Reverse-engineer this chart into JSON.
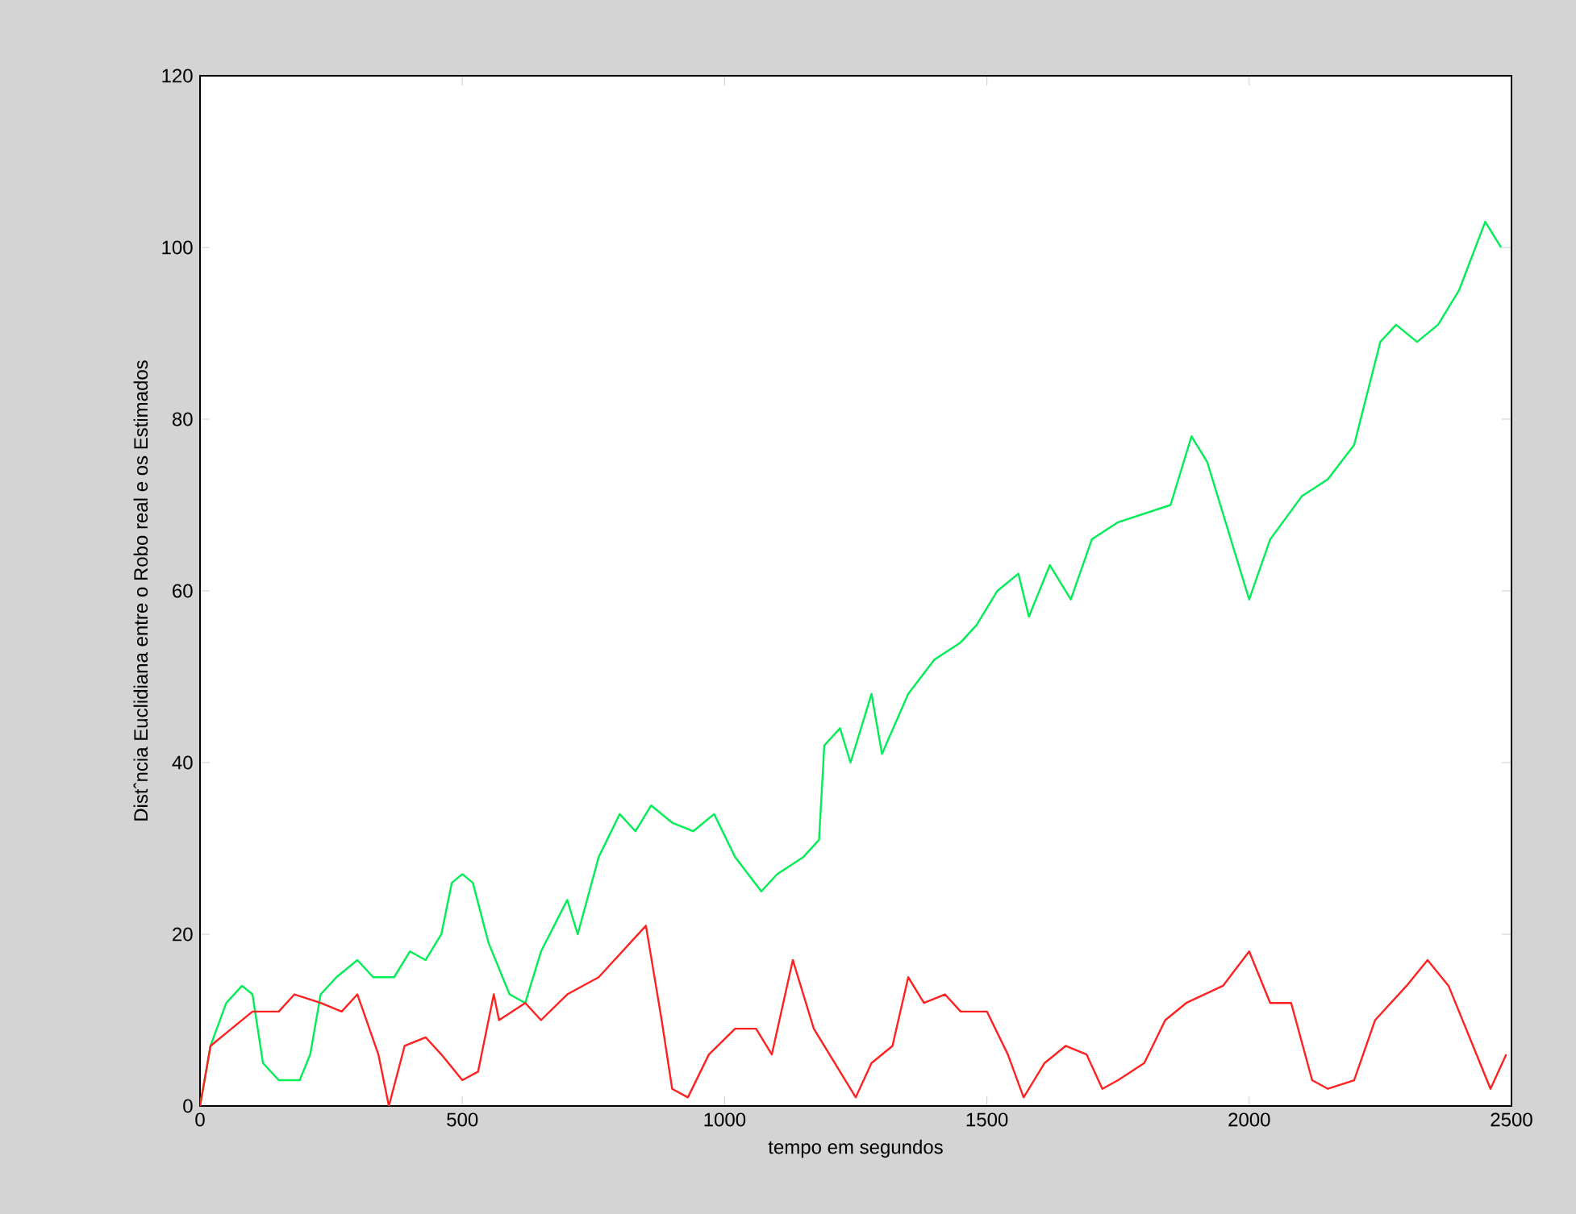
{
  "chart_data": {
    "type": "line",
    "xlabel": "tempo em segundos",
    "ylabel": "Distˆncia Euclidiana entre o Robo real e os Estimados",
    "xlim": [
      0,
      2500
    ],
    "ylim": [
      0,
      120
    ],
    "xticks": [
      0,
      500,
      1000,
      1500,
      2000,
      2500
    ],
    "yticks": [
      0,
      20,
      40,
      60,
      80,
      100,
      120
    ],
    "series": [
      {
        "color": "#00ee55",
        "x": [
          0,
          20,
          50,
          80,
          100,
          120,
          150,
          190,
          210,
          230,
          260,
          300,
          330,
          370,
          400,
          430,
          460,
          480,
          500,
          520,
          550,
          590,
          620,
          650,
          700,
          720,
          760,
          800,
          830,
          860,
          900,
          940,
          980,
          1020,
          1070,
          1100,
          1150,
          1180,
          1190,
          1220,
          1240,
          1280,
          1300,
          1350,
          1400,
          1450,
          1480,
          1520,
          1560,
          1580,
          1620,
          1660,
          1700,
          1750,
          1800,
          1850,
          1890,
          1920,
          1960,
          2000,
          2040,
          2100,
          2150,
          2200,
          2250,
          2280,
          2320,
          2360,
          2400,
          2450,
          2480
        ],
        "values": [
          0,
          7,
          12,
          14,
          13,
          5,
          3,
          3,
          6,
          13,
          15,
          17,
          15,
          15,
          18,
          17,
          20,
          26,
          27,
          26,
          19,
          13,
          12,
          18,
          24,
          20,
          29,
          34,
          32,
          35,
          33,
          32,
          34,
          29,
          25,
          27,
          29,
          31,
          42,
          44,
          40,
          48,
          41,
          48,
          52,
          54,
          56,
          60,
          62,
          57,
          63,
          59,
          66,
          68,
          69,
          70,
          78,
          75,
          67,
          59,
          66,
          71,
          73,
          77,
          89,
          91,
          89,
          91,
          95,
          103,
          100
        ]
      },
      {
        "color": "#ff2020",
        "x": [
          0,
          20,
          60,
          100,
          150,
          180,
          230,
          270,
          300,
          340,
          360,
          390,
          430,
          460,
          500,
          530,
          560,
          570,
          620,
          650,
          700,
          760,
          820,
          850,
          880,
          900,
          930,
          970,
          1020,
          1060,
          1090,
          1130,
          1170,
          1220,
          1250,
          1280,
          1320,
          1350,
          1380,
          1420,
          1450,
          1500,
          1540,
          1570,
          1610,
          1650,
          1690,
          1720,
          1750,
          1800,
          1840,
          1880,
          1950,
          2000,
          2040,
          2080,
          2120,
          2150,
          2200,
          2240,
          2300,
          2340,
          2380,
          2420,
          2460,
          2490
        ],
        "values": [
          0,
          7,
          9,
          11,
          11,
          13,
          12,
          11,
          13,
          6,
          0,
          7,
          8,
          6,
          3,
          4,
          13,
          10,
          12,
          10,
          13,
          15,
          19,
          21,
          10,
          2,
          1,
          6,
          9,
          9,
          6,
          17,
          9,
          4,
          1,
          5,
          7,
          15,
          12,
          13,
          11,
          11,
          6,
          1,
          5,
          7,
          6,
          2,
          3,
          5,
          10,
          12,
          14,
          18,
          12,
          12,
          3,
          2,
          3,
          10,
          14,
          17,
          14,
          8,
          2,
          6
        ]
      }
    ]
  }
}
